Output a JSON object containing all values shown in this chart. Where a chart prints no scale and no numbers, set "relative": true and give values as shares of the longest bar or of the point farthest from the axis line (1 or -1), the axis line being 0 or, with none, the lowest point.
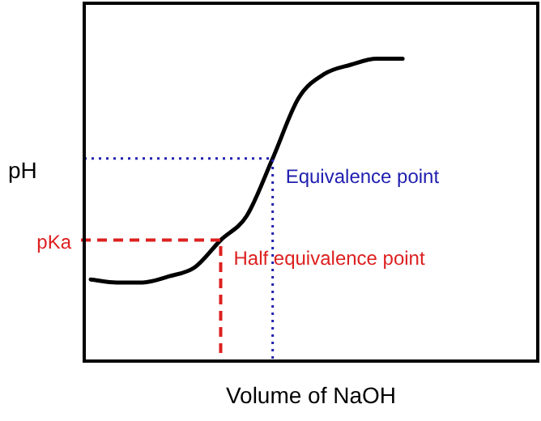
{
  "chart_data": {
    "type": "line",
    "relative": true,
    "xlabel": "Volume of NaOH",
    "ylabel": "pH",
    "categories": [
      null,
      null,
      null,
      null,
      null,
      null,
      null,
      null,
      null,
      null,
      null,
      null,
      null
    ],
    "series": [
      {
        "color": "#000000",
        "values": [
          0.27,
          0.26,
          0.26,
          0.28,
          0.31,
          0.4,
          0.48,
          0.67,
          0.87,
          0.95,
          0.98,
          1.0,
          1.0
        ]
      }
    ],
    "marker": "none",
    "line_style": "solid",
    "legend": false,
    "annotations": [
      "Half equivalence point",
      "Equivalence point"
    ],
    "ref_lines": [
      {
        "axis": "y",
        "value": 0.4,
        "label": "pKa",
        "color": "#dd2020",
        "line_style": "dashed"
      },
      {
        "axis": "y",
        "value": 0.67,
        "color": "#2020b0",
        "line_style": "dotted"
      }
    ]
  }
}
